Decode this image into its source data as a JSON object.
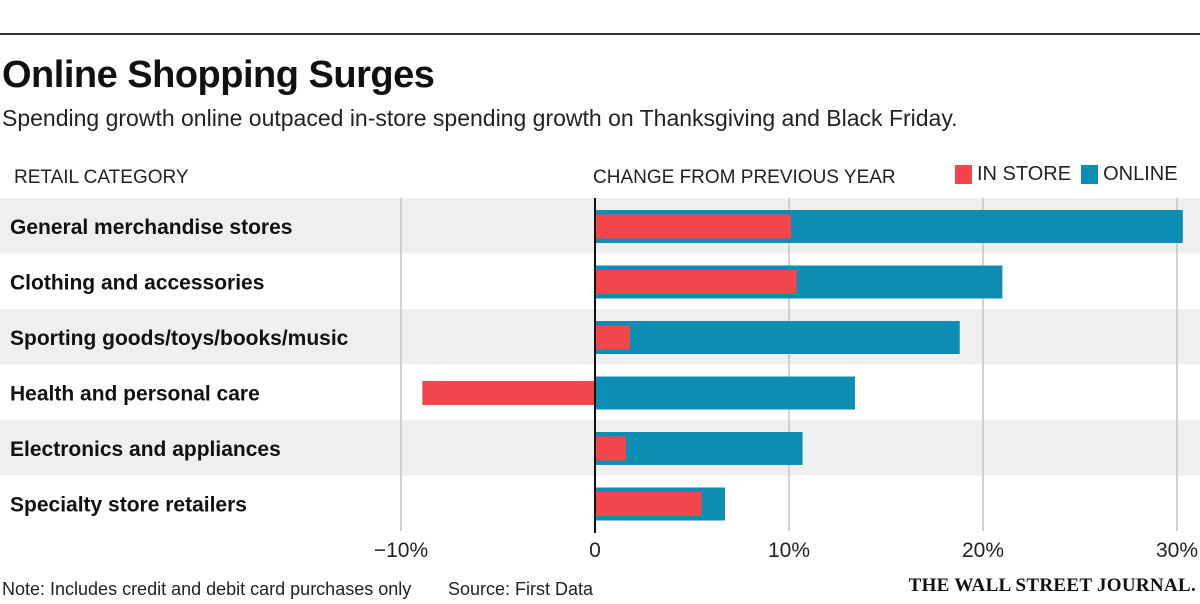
{
  "header": {
    "title": "Online Shopping Surges",
    "subtitle": "Spending growth online outpaced in-store spending growth on Thanksgiving and Black Friday."
  },
  "columns": {
    "category": "RETAIL CATEGORY",
    "value": "CHANGE FROM PREVIOUS YEAR"
  },
  "legend": {
    "in_store": "IN STORE",
    "online": "ONLINE"
  },
  "colors": {
    "in_store": "#f2464c",
    "online": "#0c8db4",
    "band": "#efefef",
    "grid": "#c4c4c4",
    "zero_line": "#111111"
  },
  "chart_data": {
    "type": "bar",
    "orientation": "horizontal",
    "title": "Online Shopping Surges",
    "xlabel": "CHANGE FROM PREVIOUS YEAR",
    "ylabel": "RETAIL CATEGORY",
    "xlim": [
      -10,
      30
    ],
    "ticks": [
      -10,
      0,
      10,
      20,
      30
    ],
    "tick_labels": [
      "−10%",
      "0",
      "10%",
      "20%",
      "30%"
    ],
    "grid": true,
    "categories": [
      "General merchandise stores",
      "Clothing and accessories",
      "Sporting goods/toys/books/music",
      "Health and personal care",
      "Electronics and appliances",
      "Specialty store retailers"
    ],
    "series": [
      {
        "name": "ONLINE",
        "values": [
          30.3,
          21.0,
          18.8,
          13.4,
          10.7,
          6.7
        ]
      },
      {
        "name": "IN STORE",
        "values": [
          10.1,
          10.4,
          1.8,
          -8.9,
          1.6,
          5.5
        ]
      }
    ]
  },
  "footer": {
    "note": "Note: Includes credit and debit card purchases only",
    "source": "Source: First Data",
    "logo": "THE WALL STREET JOURNAL."
  }
}
